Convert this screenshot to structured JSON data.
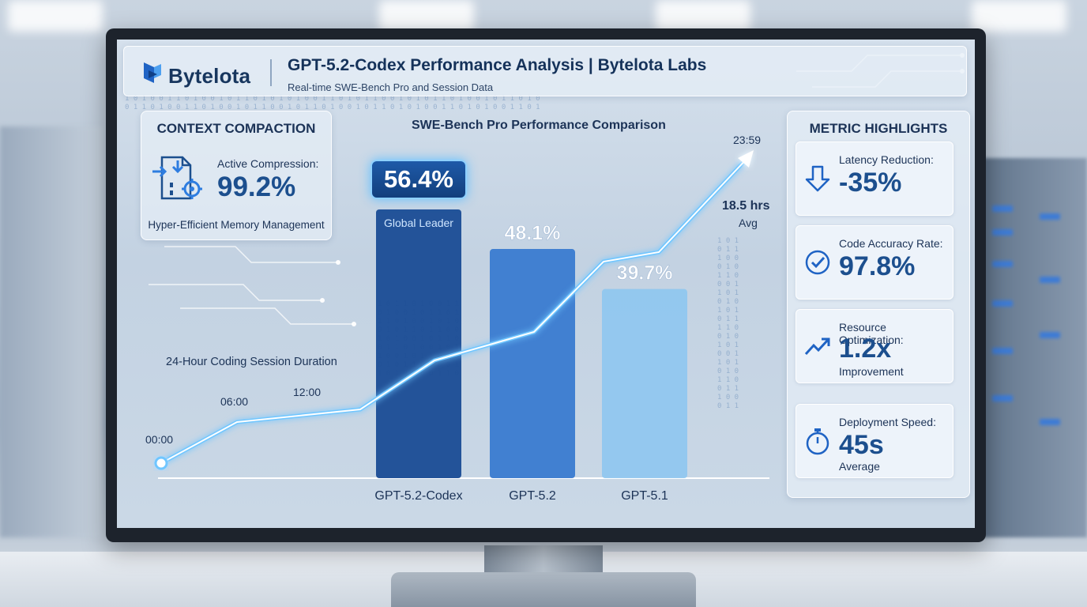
{
  "header": {
    "brand": "Bytelota",
    "title": "GPT-5.2-Codex Performance Analysis | Bytelota Labs",
    "subtitle": "Real-time SWE-Bench Pro and Session Data"
  },
  "context": {
    "heading": "CONTEXT COMPACTION",
    "label": "Active Compression:",
    "value": "99.2%",
    "footer": "Hyper-Efficient Memory Management"
  },
  "highlights": {
    "heading": "METRIC HIGHLIGHTS",
    "cards": [
      {
        "label": "Latency Reduction:",
        "value": "-35%",
        "sub": "",
        "icon": "arrow-down-icon"
      },
      {
        "label": "Code Accuracy Rate:",
        "value": "97.8%",
        "sub": "",
        "icon": "check-circle-icon"
      },
      {
        "label": "Resource Optimization:",
        "value": "1.2x",
        "sub": "Improvement",
        "icon": "trend-up-icon"
      },
      {
        "label": "Deployment Speed:",
        "value": "45s",
        "sub": "Average",
        "icon": "stopwatch-icon"
      }
    ]
  },
  "chart_data": {
    "type": "bar",
    "title": "SWE-Bench Pro Performance Comparison",
    "categories": [
      "GPT-5.2-Codex",
      "GPT-5.2",
      "GPT-5.1"
    ],
    "values": [
      56.4,
      48.1,
      39.7
    ],
    "labels": [
      "56.4%",
      "48.1%",
      "39.7%"
    ],
    "ylim": [
      0,
      60
    ],
    "leader_label": "Global Leader",
    "colors": [
      "#1a4c95",
      "#3a7bd0",
      "#8ec6ef"
    ],
    "overlay_line": {
      "type": "line",
      "title": "24-Hour Coding Session Duration",
      "tick_labels": [
        "00:00",
        "06:00",
        "12:00",
        "23:59"
      ],
      "average_value": "18.5 hrs",
      "average_label": "Avg"
    }
  }
}
